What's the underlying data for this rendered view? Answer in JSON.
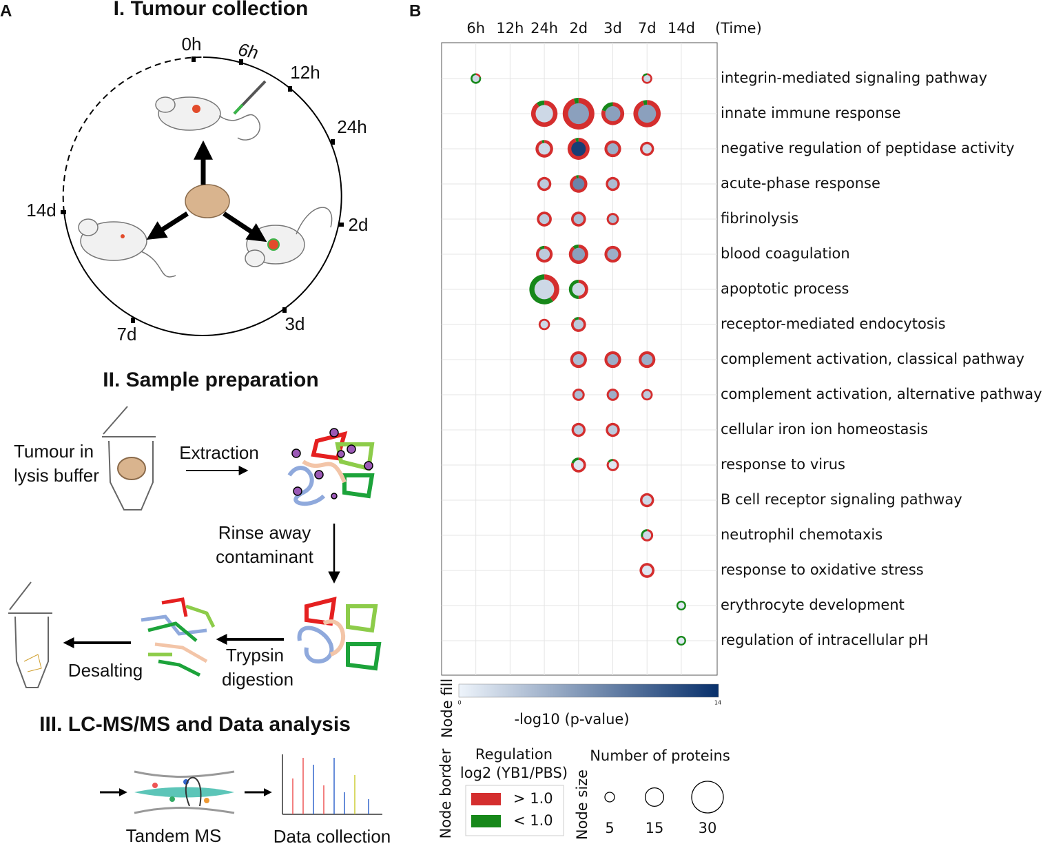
{
  "panel_a": {
    "label": "A",
    "section_1": "I. Tumour collection",
    "timepoints": [
      "0h",
      "6h",
      "12h",
      "24h",
      "2d",
      "3d",
      "7d",
      "14d"
    ],
    "section_2": "II. Sample preparation",
    "tube_label": [
      "Tumour in",
      "lysis buffer"
    ],
    "extraction": "Extraction",
    "rinse": [
      "Rinse away",
      "contaminant"
    ],
    "trypsin": [
      "Trypsin",
      "digestion"
    ],
    "desalting": "Desalting",
    "section_3": "III. LC-MS/MS and Data analysis",
    "tandem_ms": "Tandem MS",
    "data_collection": "Data collection"
  },
  "chart_data": {
    "type": "bubble",
    "label": "B",
    "categories": [
      "6h",
      "12h",
      "24h",
      "2d",
      "3d",
      "7d",
      "14d"
    ],
    "x_label": "(Time)",
    "rows": [
      {
        "name": "integrin-mediated signaling pathway",
        "cells": [
          {
            "size": 6,
            "fill": 2,
            "up": 0.2
          },
          null,
          null,
          null,
          null,
          {
            "size": 6,
            "fill": 2,
            "up": 0.85
          },
          null
        ]
      },
      {
        "name": "innate immune response",
        "cells": [
          null,
          null,
          {
            "size": 24,
            "fill": 2,
            "up": 0.9
          },
          {
            "size": 30,
            "fill": 6,
            "up": 0.95
          },
          {
            "size": 20,
            "fill": 6,
            "up": 0.8
          },
          {
            "size": 25,
            "fill": 6,
            "up": 0.95
          },
          null
        ]
      },
      {
        "name": "negative regulation of peptidase activity",
        "cells": [
          null,
          null,
          {
            "size": 14,
            "fill": 2,
            "up": 0.95
          },
          {
            "size": 19,
            "fill": 13,
            "up": 0.95
          },
          {
            "size": 13,
            "fill": 5,
            "up": 1
          },
          {
            "size": 10,
            "fill": 2,
            "up": 1
          },
          null
        ]
      },
      {
        "name": "acute-phase response",
        "cells": [
          null,
          null,
          {
            "size": 10,
            "fill": 3,
            "up": 1
          },
          {
            "size": 14,
            "fill": 8,
            "up": 0.95
          },
          {
            "size": 10,
            "fill": 4,
            "up": 1
          },
          null,
          null
        ]
      },
      {
        "name": "fibrinolysis",
        "cells": [
          null,
          null,
          {
            "size": 11,
            "fill": 3,
            "up": 1
          },
          {
            "size": 11,
            "fill": 4,
            "up": 1
          },
          {
            "size": 8,
            "fill": 4,
            "up": 1
          },
          null,
          null
        ]
      },
      {
        "name": "blood coagulation",
        "cells": [
          null,
          null,
          {
            "size": 13,
            "fill": 3,
            "up": 0.9
          },
          {
            "size": 16,
            "fill": 6,
            "up": 0.9
          },
          {
            "size": 13,
            "fill": 5,
            "up": 1
          },
          null,
          null
        ]
      },
      {
        "name": "apoptotic process",
        "cells": [
          null,
          null,
          {
            "size": 28,
            "fill": 2,
            "up": 0.4
          },
          {
            "size": 16,
            "fill": 2,
            "up": 0.5
          },
          null,
          null,
          null
        ]
      },
      {
        "name": "receptor-mediated endocytosis",
        "cells": [
          null,
          null,
          {
            "size": 7,
            "fill": 2,
            "up": 1
          },
          {
            "size": 11,
            "fill": 3,
            "up": 0.9
          },
          null,
          null,
          null
        ]
      },
      {
        "name": "complement activation, classical pathway",
        "cells": [
          null,
          null,
          null,
          {
            "size": 13,
            "fill": 4,
            "up": 1
          },
          {
            "size": 13,
            "fill": 5,
            "up": 1
          },
          {
            "size": 13,
            "fill": 5,
            "up": 1
          },
          null
        ]
      },
      {
        "name": "complement activation, alternative pathway",
        "cells": [
          null,
          null,
          null,
          {
            "size": 8,
            "fill": 4,
            "up": 1
          },
          {
            "size": 8,
            "fill": 5,
            "up": 1
          },
          {
            "size": 7,
            "fill": 3,
            "up": 1
          },
          null
        ]
      },
      {
        "name": "cellular iron ion homeostasis",
        "cells": [
          null,
          null,
          null,
          {
            "size": 10,
            "fill": 3,
            "up": 1
          },
          {
            "size": 10,
            "fill": 3,
            "up": 1
          },
          null,
          null
        ]
      },
      {
        "name": "response to virus",
        "cells": [
          null,
          null,
          null,
          {
            "size": 11,
            "fill": 1,
            "up": 0.8
          },
          {
            "size": 8,
            "fill": 1,
            "up": 0.85
          },
          null,
          null
        ]
      },
      {
        "name": "B cell receptor signaling pathway",
        "cells": [
          null,
          null,
          null,
          null,
          null,
          {
            "size": 10,
            "fill": 2,
            "up": 1
          },
          null
        ]
      },
      {
        "name": "neutrophil chemotaxis",
        "cells": [
          null,
          null,
          null,
          null,
          null,
          {
            "size": 8,
            "fill": 2,
            "up": 0.7
          },
          null
        ]
      },
      {
        "name": "response to oxidative stress",
        "cells": [
          null,
          null,
          null,
          null,
          null,
          {
            "size": 11,
            "fill": 1,
            "up": 1
          },
          null
        ]
      },
      {
        "name": "erythrocyte development",
        "cells": [
          null,
          null,
          null,
          null,
          null,
          null,
          {
            "size": 5,
            "fill": 1,
            "up": 0
          }
        ]
      },
      {
        "name": "regulation of intracellular pH",
        "cells": [
          null,
          null,
          null,
          null,
          null,
          null,
          {
            "size": 5,
            "fill": 1,
            "up": 0
          }
        ]
      }
    ],
    "fill_legend": {
      "title": "Node fill",
      "label": "-log10 (p-value)",
      "lim": [
        0,
        14
      ],
      "colors": [
        "#eef4fb",
        "#08306b"
      ]
    },
    "border_legend": {
      "title": "Node border",
      "heading": [
        "Regulation",
        "log2 (YB1/PBS)"
      ],
      "items": [
        {
          "label": "> 1.0",
          "color": "#d42e2e"
        },
        {
          "label": "< 1.0",
          "color": "#17881a"
        }
      ]
    },
    "size_legend": {
      "title": "Node size",
      "heading": "Number of proteins",
      "sizes": [
        5,
        15,
        30
      ]
    }
  }
}
